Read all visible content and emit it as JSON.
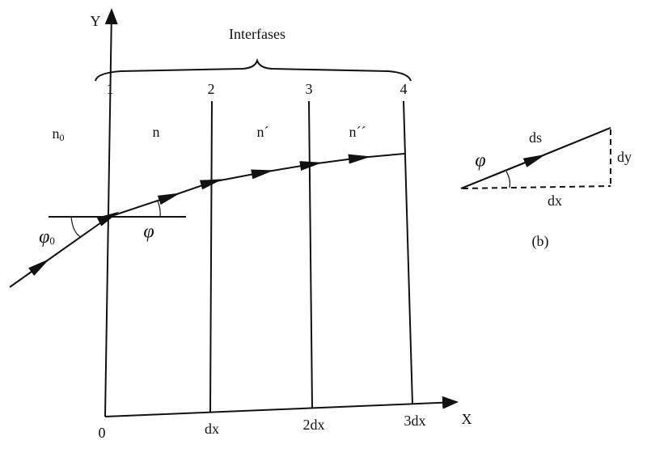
{
  "axes": {
    "y_label": "Y",
    "x_label": "X",
    "x_ticks": [
      "0",
      "dx",
      "2dx",
      "3dx"
    ]
  },
  "interfaces": {
    "title": "Interfases",
    "labels": [
      "1",
      "2",
      "3",
      "4"
    ]
  },
  "media": [
    {
      "base": "n",
      "sub": "0"
    },
    {
      "base": "n"
    },
    {
      "base": "n´"
    },
    {
      "base": "n´´"
    }
  ],
  "angles": {
    "incident": {
      "base": "φ",
      "sub": "0"
    },
    "refracted": {
      "base": "φ"
    }
  },
  "inset": {
    "ds": "ds",
    "dy": "dy",
    "dx": "dx",
    "angle": "φ",
    "caption": "(b)"
  }
}
